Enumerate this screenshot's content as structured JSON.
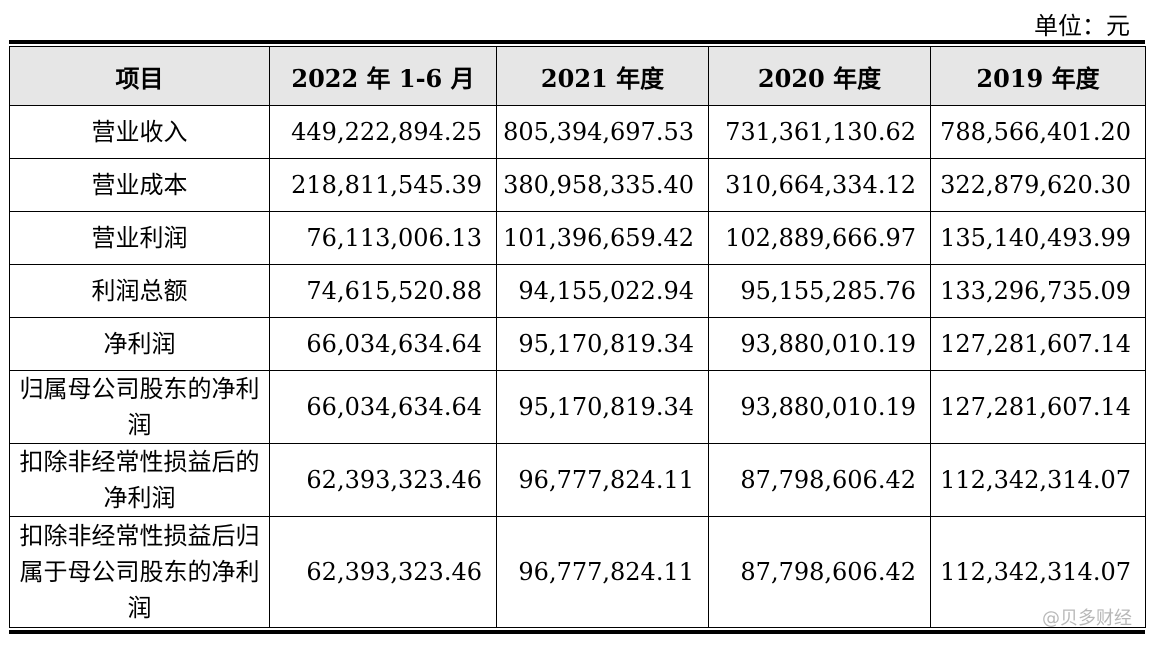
{
  "unit_label": "单位：元",
  "headers": [
    "项目",
    "2022 年 1-6 月",
    "2021 年度",
    "2020 年度",
    "2019 年度"
  ],
  "rows": [
    {
      "item": "营业收入",
      "values": [
        "449,222,894.25",
        "805,394,697.53",
        "731,361,130.62",
        "788,566,401.20"
      ]
    },
    {
      "item": "营业成本",
      "values": [
        "218,811,545.39",
        "380,958,335.40",
        "310,664,334.12",
        "322,879,620.30"
      ]
    },
    {
      "item": "营业利润",
      "values": [
        "76,113,006.13",
        "101,396,659.42",
        "102,889,666.97",
        "135,140,493.99"
      ]
    },
    {
      "item": "利润总额",
      "values": [
        "74,615,520.88",
        "94,155,022.94",
        "95,155,285.76",
        "133,296,735.09"
      ]
    },
    {
      "item": "净利润",
      "values": [
        "66,034,634.64",
        "95,170,819.34",
        "93,880,010.19",
        "127,281,607.14"
      ]
    },
    {
      "item": "归属母公司股东的净利润",
      "values": [
        "66,034,634.64",
        "95,170,819.34",
        "93,880,010.19",
        "127,281,607.14"
      ]
    },
    {
      "item": "扣除非经常性损益后的净利润",
      "values": [
        "62,393,323.46",
        "96,777,824.11",
        "87,798,606.42",
        "112,342,314.07"
      ]
    },
    {
      "item": "扣除非经常性损益后归属于母公司股东的净利润",
      "values": [
        "62,393,323.46",
        "96,777,824.11",
        "87,798,606.42",
        "112,342,314.07"
      ]
    }
  ],
  "watermark": "@贝多财经"
}
